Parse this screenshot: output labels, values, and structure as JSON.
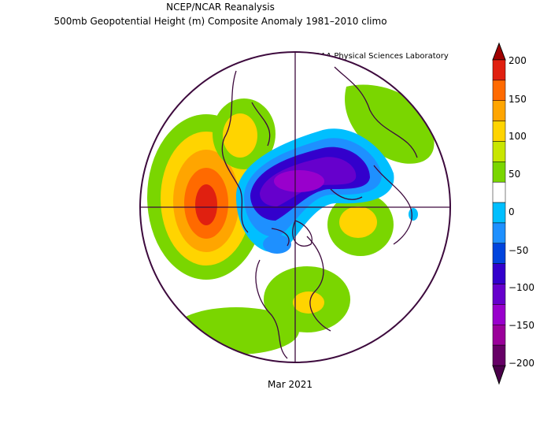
{
  "header": {
    "title_line1": "NCEP/NCAR Reanalysis",
    "title_line2": "500mb Geopotential Height (m) Composite Anomaly 1981–2010 climo",
    "credit": "NOAA Physical Sciences Laboratory"
  },
  "footer": {
    "date_label": "Mar 2021"
  },
  "colorbar": {
    "ticks": [
      "200",
      "150",
      "100",
      "50",
      "0",
      "−50",
      "−100",
      "−150",
      "−200"
    ],
    "colors": [
      "#e02010",
      "#ff6a00",
      "#ffa500",
      "#ffd400",
      "#c8e600",
      "#7ad600",
      "#ffffff",
      "#00bfff",
      "#1e90ff",
      "#0044dd",
      "#3300cc",
      "#6600cc",
      "#9900cc",
      "#9a009a",
      "#660066"
    ]
  }
}
